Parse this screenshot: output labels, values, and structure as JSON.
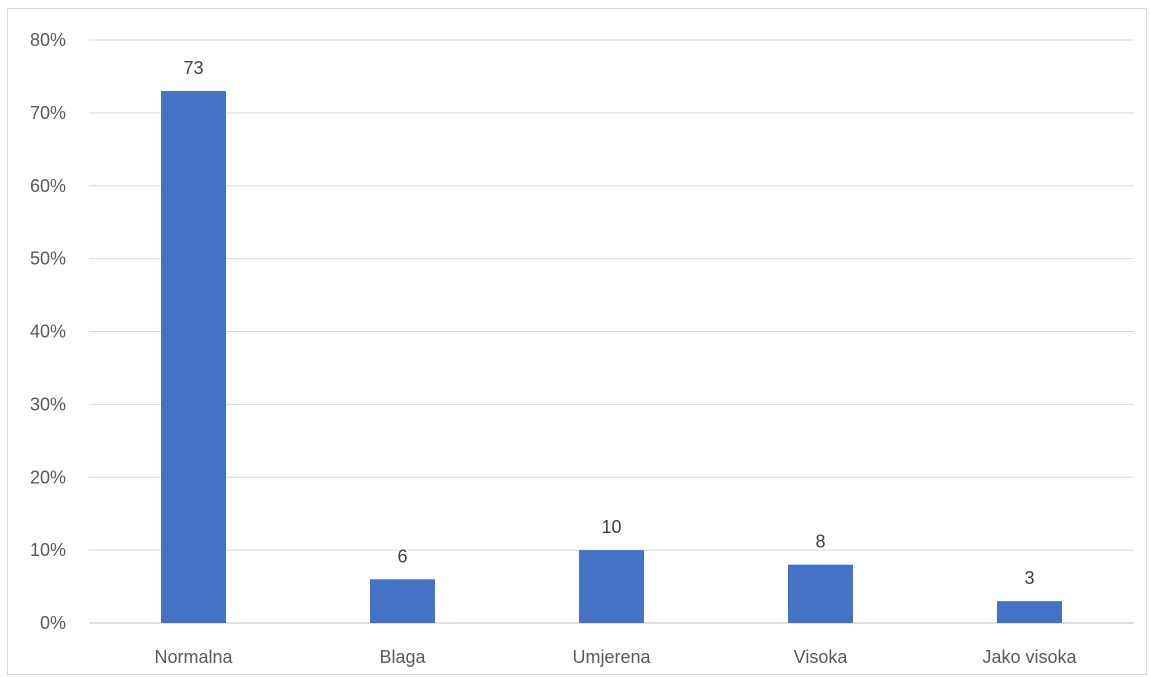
{
  "chart_data": {
    "type": "bar",
    "title": "",
    "xlabel": "",
    "ylabel": "",
    "categories": [
      "Normalna",
      "Blaga",
      "Umjerena",
      "Visoka",
      "Jako visoka"
    ],
    "values": [
      73,
      6,
      10,
      8,
      3
    ],
    "data_labels": [
      "73",
      "6",
      "10",
      "8",
      "3"
    ],
    "ylim": [
      0,
      80
    ],
    "yticks": [
      0,
      10,
      20,
      30,
      40,
      50,
      60,
      70,
      80
    ],
    "ytick_labels": [
      "0%",
      "10%",
      "20%",
      "30%",
      "40%",
      "50%",
      "60%",
      "70%",
      "80%"
    ],
    "grid": true,
    "legend": "none",
    "bar_color": "#4472c4"
  }
}
